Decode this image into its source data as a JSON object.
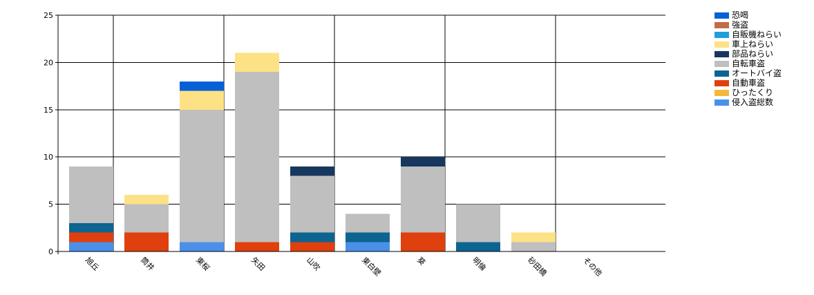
{
  "chart_data": {
    "type": "bar",
    "stacked": true,
    "title": "",
    "xlabel": "",
    "ylabel": "",
    "ylim": [
      0,
      25
    ],
    "yticks": [
      0,
      5,
      10,
      15,
      20,
      25
    ],
    "grid": true,
    "legend_position": "top-right",
    "categories": [
      "旭丘",
      "筒井",
      "東桜",
      "矢田",
      "山吹",
      "東白壁",
      "葵",
      "明倫",
      "砂田橋",
      "その他"
    ],
    "series": [
      {
        "name": "侵入盗総数",
        "color": "#4a90e8",
        "values": [
          1,
          0,
          1,
          0,
          0,
          1,
          0,
          0,
          0,
          0
        ]
      },
      {
        "name": "ひったくり",
        "color": "#f5b73b",
        "values": [
          0,
          0,
          0,
          0,
          0,
          0,
          0,
          0,
          0,
          0
        ]
      },
      {
        "name": "自動車盗",
        "color": "#e0400d",
        "values": [
          1,
          2,
          0,
          1,
          1,
          0,
          2,
          0,
          0,
          0
        ]
      },
      {
        "name": "オートバイ盗",
        "color": "#0c6491",
        "values": [
          1,
          0,
          0,
          0,
          1,
          1,
          0,
          1,
          0,
          0
        ]
      },
      {
        "name": "自転車盗",
        "color": "#bfbfbf",
        "values": [
          6,
          3,
          14,
          18,
          6,
          2,
          7,
          4,
          1,
          0
        ]
      },
      {
        "name": "部品ねらい",
        "color": "#17375e",
        "values": [
          0,
          0,
          0,
          0,
          1,
          0,
          1,
          0,
          0,
          0
        ]
      },
      {
        "name": "車上ねらい",
        "color": "#fde185",
        "values": [
          0,
          1,
          2,
          2,
          0,
          0,
          0,
          0,
          1,
          0
        ]
      },
      {
        "name": "自販機ねらい",
        "color": "#1e9fdb",
        "values": [
          0,
          0,
          0,
          0,
          0,
          0,
          0,
          0,
          0,
          0
        ]
      },
      {
        "name": "強盗",
        "color": "#c46b4a",
        "values": [
          0,
          0,
          0,
          0,
          0,
          0,
          0,
          0,
          0,
          0
        ]
      },
      {
        "name": "恐喝",
        "color": "#0660d8",
        "values": [
          0,
          0,
          1,
          0,
          0,
          0,
          0,
          0,
          0,
          0
        ]
      }
    ]
  }
}
